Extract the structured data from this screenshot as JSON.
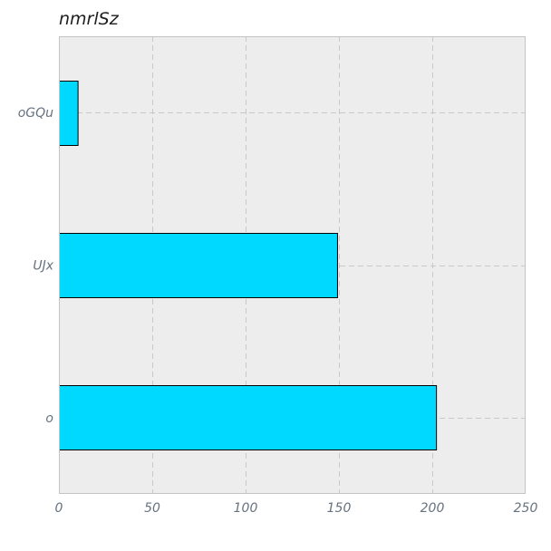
{
  "chart_data": {
    "type": "bar",
    "orientation": "horizontal",
    "title": "nmrlSz",
    "xlabel": "",
    "ylabel": "",
    "categories": [
      "o",
      "UJx",
      "oGQu"
    ],
    "values": [
      202,
      149,
      10
    ],
    "xlim": [
      0,
      250
    ],
    "xticks": [
      0,
      50,
      100,
      150,
      200,
      250
    ],
    "grid": true,
    "bar_color": "#00d9ff",
    "bar_edge_color": "#000000",
    "background_color": "#ededed"
  }
}
